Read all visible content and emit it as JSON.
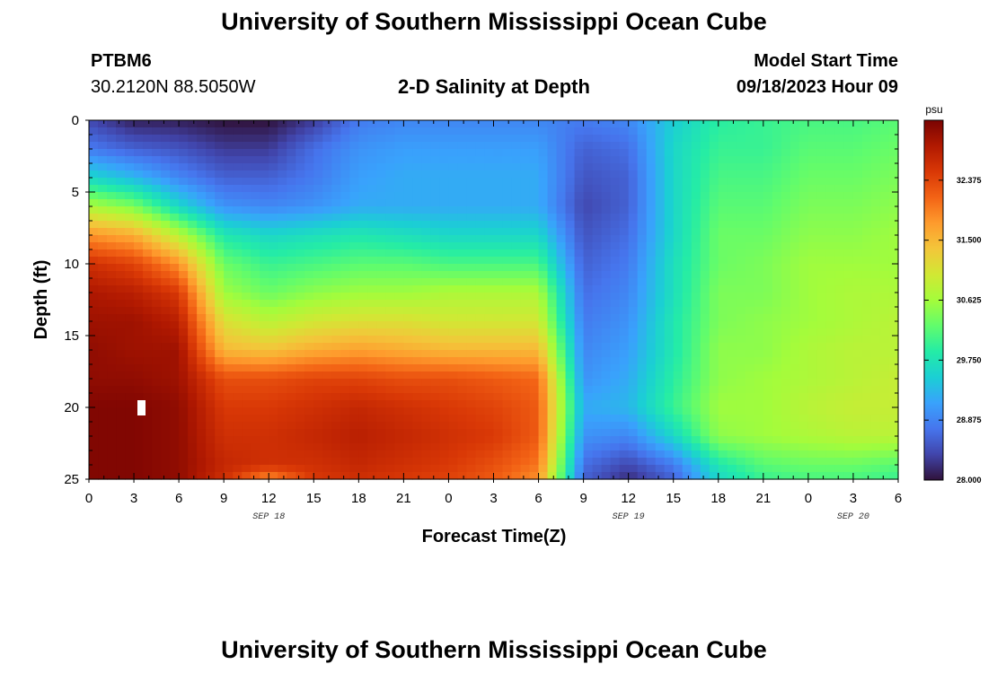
{
  "header": {
    "title": "University of Southern Mississippi Ocean Cube",
    "station_id": "PTBM6",
    "station_coords": "30.2120N  88.5050W",
    "chart_title": "2-D Salinity at Depth",
    "run_label": "Model Start Time",
    "run_value": "09/18/2023 Hour 09"
  },
  "footer": {
    "title": "University of Southern Mississippi Ocean Cube"
  },
  "chart_data": {
    "type": "heatmap",
    "title": "2-D Salinity at Depth",
    "xlabel": "Forecast Time(Z)",
    "ylabel": "Depth (ft)",
    "x_hours_range": [
      0,
      54
    ],
    "x_tick_labels": [
      "0",
      "3",
      "6",
      "9",
      "12",
      "15",
      "18",
      "21",
      "0",
      "3",
      "6",
      "9",
      "12",
      "15",
      "18",
      "21",
      "0",
      "3",
      "6"
    ],
    "date_labels": [
      {
        "hour": 12,
        "text": "SEP 18"
      },
      {
        "hour": 36,
        "text": "SEP 19"
      },
      {
        "hour": 51,
        "text": "SEP 20"
      }
    ],
    "y_range": [
      0,
      25
    ],
    "y_ticks": [
      0,
      5,
      10,
      15,
      20,
      25
    ],
    "colorbar": {
      "unit": "psu",
      "min": 28.0,
      "max": 33.25,
      "ticks": [
        "28.000",
        "28.875",
        "29.750",
        "30.625",
        "31.500",
        "32.375"
      ],
      "colors": [
        "#30123b",
        "#4145ab",
        "#4675ed",
        "#39a2fc",
        "#1bcfd4",
        "#24eca6",
        "#61fc6c",
        "#a4fc3b",
        "#d1e834",
        "#f3c63a",
        "#fe9b2d",
        "#f36315",
        "#d93806",
        "#b11901",
        "#7a0402"
      ]
    },
    "z_grid": {
      "depths_ft": [
        0,
        2,
        4,
        6,
        8,
        10,
        12,
        14,
        16,
        18,
        20,
        22,
        24,
        25
      ],
      "hours": [
        0,
        3,
        6,
        9,
        12,
        15,
        18,
        21,
        24,
        27,
        30,
        33,
        36,
        39,
        42,
        45,
        48,
        51,
        54
      ],
      "values": [
        [
          28.4,
          28.1,
          28.1,
          28.0,
          28.0,
          28.3,
          28.8,
          28.9,
          28.9,
          28.9,
          28.9,
          28.8,
          28.9,
          29.5,
          29.9,
          30.0,
          30.1,
          30.1,
          30.2
        ],
        [
          28.8,
          28.6,
          28.5,
          28.3,
          28.3,
          28.7,
          29.0,
          29.1,
          29.1,
          29.1,
          29.1,
          28.6,
          28.7,
          29.6,
          30.0,
          30.0,
          30.2,
          30.2,
          30.3
        ],
        [
          29.6,
          29.3,
          28.9,
          28.6,
          28.6,
          28.8,
          29.1,
          29.2,
          29.2,
          29.2,
          29.2,
          28.5,
          28.6,
          29.6,
          30.1,
          30.1,
          30.3,
          30.3,
          30.4
        ],
        [
          30.7,
          30.4,
          29.6,
          29.0,
          28.9,
          29.0,
          29.2,
          29.2,
          29.2,
          29.2,
          29.2,
          28.4,
          28.6,
          29.6,
          30.2,
          30.2,
          30.4,
          30.4,
          30.5
        ],
        [
          31.8,
          31.6,
          30.8,
          29.8,
          29.6,
          29.7,
          29.8,
          29.7,
          29.6,
          29.6,
          29.6,
          28.5,
          28.7,
          29.6,
          30.3,
          30.3,
          30.5,
          30.5,
          30.6
        ],
        [
          32.6,
          32.4,
          31.8,
          30.3,
          30.0,
          30.1,
          30.2,
          30.2,
          30.1,
          30.1,
          30.1,
          28.6,
          28.8,
          29.7,
          30.3,
          30.4,
          30.6,
          30.6,
          30.6
        ],
        [
          32.9,
          32.8,
          32.5,
          30.6,
          30.3,
          30.5,
          30.6,
          30.6,
          30.7,
          30.7,
          30.7,
          28.7,
          28.9,
          29.7,
          30.4,
          30.4,
          30.6,
          30.7,
          30.7
        ],
        [
          33.0,
          33.0,
          32.8,
          31.1,
          30.8,
          31.0,
          31.1,
          31.1,
          31.0,
          31.0,
          31.0,
          28.8,
          29.0,
          29.8,
          30.4,
          30.5,
          30.6,
          30.7,
          30.8
        ],
        [
          33.1,
          33.0,
          33.0,
          31.5,
          31.4,
          31.6,
          31.7,
          31.6,
          31.5,
          31.5,
          31.5,
          28.9,
          29.1,
          29.8,
          30.5,
          30.5,
          30.7,
          30.8,
          30.8
        ],
        [
          33.1,
          33.1,
          33.0,
          32.3,
          32.3,
          32.4,
          32.4,
          32.3,
          32.3,
          32.2,
          32.1,
          29.0,
          29.2,
          29.9,
          30.5,
          30.6,
          30.7,
          30.8,
          30.9
        ],
        [
          33.2,
          33.2,
          33.1,
          32.5,
          32.5,
          32.6,
          32.7,
          32.6,
          32.5,
          32.4,
          32.2,
          29.2,
          29.3,
          30.0,
          30.6,
          30.6,
          30.8,
          30.9,
          30.9
        ],
        [
          33.2,
          33.2,
          33.1,
          32.6,
          32.6,
          32.7,
          32.8,
          32.7,
          32.6,
          32.5,
          32.2,
          29.0,
          28.9,
          29.6,
          30.5,
          30.6,
          30.7,
          30.8,
          30.8
        ],
        [
          33.2,
          33.2,
          33.1,
          32.7,
          32.6,
          32.6,
          32.7,
          32.6,
          32.5,
          32.3,
          32.0,
          28.7,
          28.4,
          28.8,
          29.8,
          30.2,
          30.3,
          30.3,
          30.2
        ],
        [
          33.2,
          33.2,
          33.1,
          32.6,
          31.8,
          32.5,
          32.6,
          32.5,
          32.4,
          32.2,
          31.8,
          28.6,
          28.2,
          28.6,
          29.6,
          30.0,
          30.1,
          30.1,
          30.0
        ]
      ]
    }
  }
}
